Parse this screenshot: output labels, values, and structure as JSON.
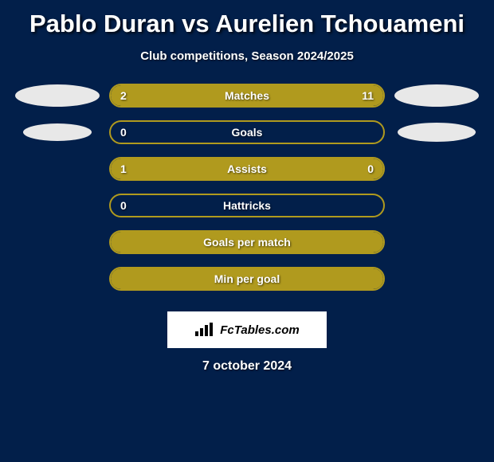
{
  "background_color": "#021f4a",
  "accent_color": "#b09a1e",
  "text_color": "#ffffff",
  "title": "Pablo Duran vs Aurelien Tchouameni",
  "subtitle": "Club competitions, Season 2024/2025",
  "date": "7 october 2024",
  "watermark_text": "FcTables.com",
  "oval_left_rows": [
    0,
    1
  ],
  "oval_right_rows": [
    0,
    1
  ],
  "oval_left_sizes": [
    [
      106,
      28
    ],
    [
      86,
      22
    ]
  ],
  "oval_right_sizes": [
    [
      106,
      28
    ],
    [
      98,
      24
    ]
  ],
  "bars": [
    {
      "label": "Matches",
      "left": "2",
      "right": "11",
      "left_fill_pct": 17,
      "right_fill_pct": 83,
      "show_left_val": true,
      "show_right_val": true
    },
    {
      "label": "Goals",
      "left": "0",
      "right": "",
      "left_fill_pct": 0,
      "right_fill_pct": 0,
      "show_left_val": true,
      "show_right_val": false
    },
    {
      "label": "Assists",
      "left": "1",
      "right": "0",
      "left_fill_pct": 77,
      "right_fill_pct": 23,
      "show_left_val": true,
      "show_right_val": true
    },
    {
      "label": "Hattricks",
      "left": "0",
      "right": "",
      "left_fill_pct": 0,
      "right_fill_pct": 0,
      "show_left_val": true,
      "show_right_val": false
    },
    {
      "label": "Goals per match",
      "left": "",
      "right": "",
      "left_fill_pct": 100,
      "right_fill_pct": 0,
      "show_left_val": false,
      "show_right_val": false,
      "full_fill": true
    },
    {
      "label": "Min per goal",
      "left": "",
      "right": "",
      "left_fill_pct": 100,
      "right_fill_pct": 0,
      "show_left_val": false,
      "show_right_val": false,
      "full_fill": true
    }
  ],
  "bar_style": {
    "track_width": 346,
    "track_height": 30,
    "border_radius": 15,
    "border_width": 2,
    "border_color": "#b09a1e",
    "fill_color": "#b09a1e",
    "label_fontsize": 14,
    "value_fontsize": 14
  },
  "title_fontsize": 31,
  "subtitle_fontsize": 15,
  "date_fontsize": 16
}
